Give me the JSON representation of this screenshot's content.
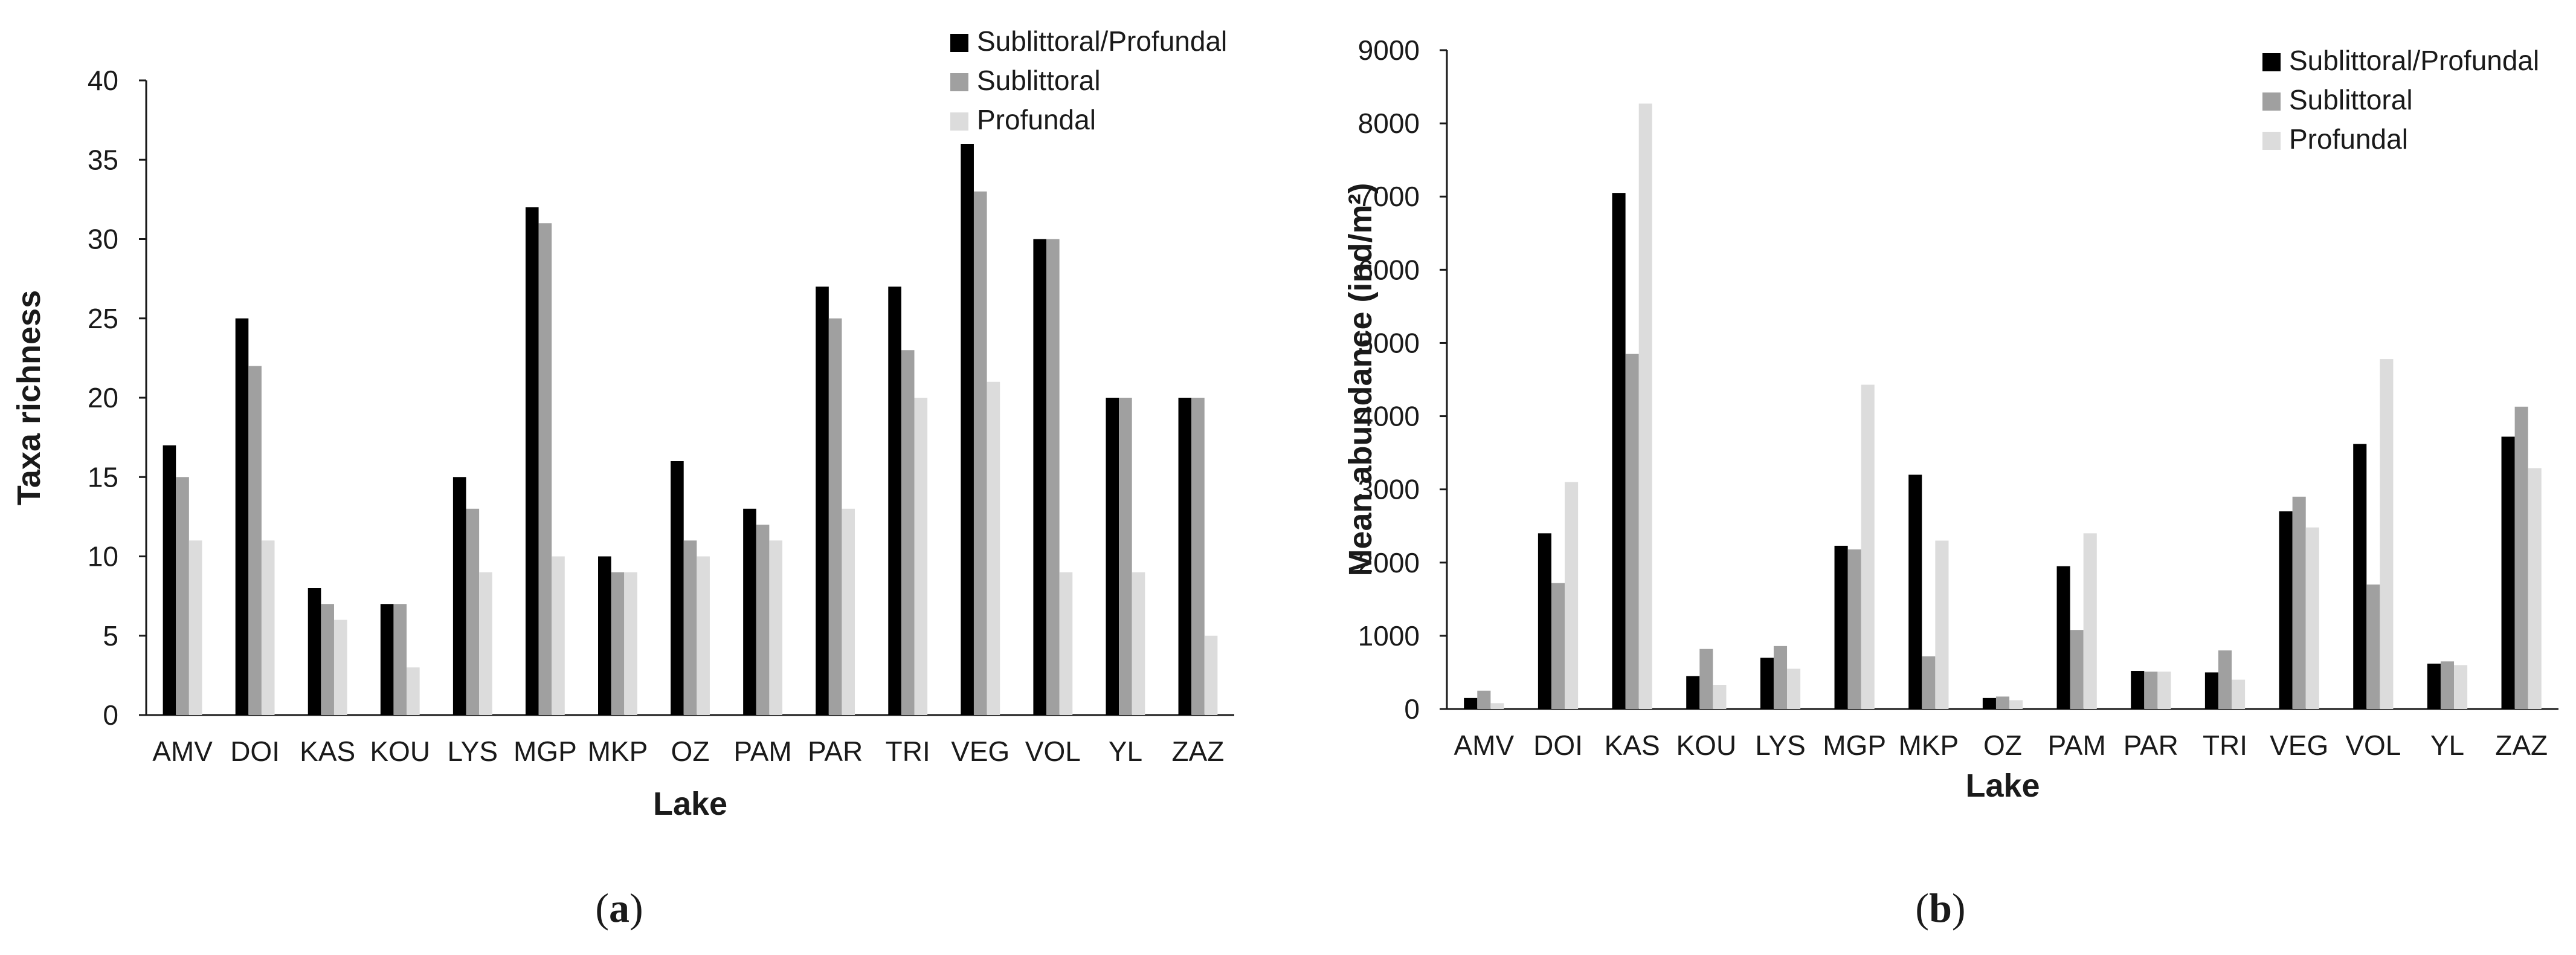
{
  "colors": {
    "Sublittoral/Profundal": "#000000",
    "Sublittoral": "#a0a0a0",
    "Profundal": "#dcdcdc",
    "axis": "#1a1a1a"
  },
  "chart_data": [
    {
      "type": "bar",
      "panel_label_open": "(",
      "panel_label_letter": "a",
      "panel_label_close": ")",
      "xlabel": "Lake",
      "ylabel": "Taxa richness",
      "ylim": [
        0,
        40
      ],
      "yticks": [
        0,
        5,
        10,
        15,
        20,
        25,
        30,
        35,
        40
      ],
      "grid": false,
      "legend_position": "top-right",
      "categories": [
        "AMV",
        "DOI",
        "KAS",
        "KOU",
        "LYS",
        "MGP",
        "MKP",
        "OZ",
        "PAM",
        "PAR",
        "TRI",
        "VEG",
        "VOL",
        "YL",
        "ZAZ"
      ],
      "series": [
        {
          "name": "Sublittoral/Profundal",
          "values": [
            17,
            25,
            8,
            7,
            15,
            32,
            10,
            16,
            13,
            27,
            27,
            36,
            30,
            20,
            20
          ]
        },
        {
          "name": "Sublittoral",
          "values": [
            15,
            22,
            7,
            7,
            13,
            31,
            9,
            11,
            12,
            25,
            23,
            33,
            30,
            20,
            20
          ]
        },
        {
          "name": "Profundal",
          "values": [
            11,
            11,
            6,
            3,
            9,
            10,
            9,
            10,
            11,
            13,
            20,
            21,
            9,
            9,
            5
          ]
        }
      ]
    },
    {
      "type": "bar",
      "panel_label_open": "(",
      "panel_label_letter": "b",
      "panel_label_close": ")",
      "xlabel": "Lake",
      "ylabel": "Mean abundance (ind/m²)",
      "ylim": [
        0,
        9000
      ],
      "yticks": [
        0,
        1000,
        2000,
        3000,
        4000,
        5000,
        6000,
        7000,
        8000,
        9000
      ],
      "grid": false,
      "legend_position": "top-right",
      "categories": [
        "AMV",
        "DOI",
        "KAS",
        "KOU",
        "LYS",
        "MGP",
        "MKP",
        "OZ",
        "PAM",
        "PAR",
        "TRI",
        "VEG",
        "VOL",
        "YL",
        "ZAZ"
      ],
      "series": [
        {
          "name": "Sublittoral/Profundal",
          "values": [
            150,
            2400,
            7050,
            450,
            700,
            2230,
            3200,
            150,
            1950,
            520,
            500,
            2700,
            3620,
            620,
            3720
          ]
        },
        {
          "name": "Sublittoral",
          "values": [
            250,
            1720,
            4850,
            820,
            860,
            2180,
            720,
            170,
            1080,
            510,
            800,
            2900,
            1700,
            650,
            4130
          ]
        },
        {
          "name": "Profundal",
          "values": [
            80,
            3100,
            8270,
            330,
            550,
            4430,
            2300,
            120,
            2400,
            510,
            400,
            2480,
            4780,
            600,
            3290
          ]
        }
      ]
    }
  ]
}
